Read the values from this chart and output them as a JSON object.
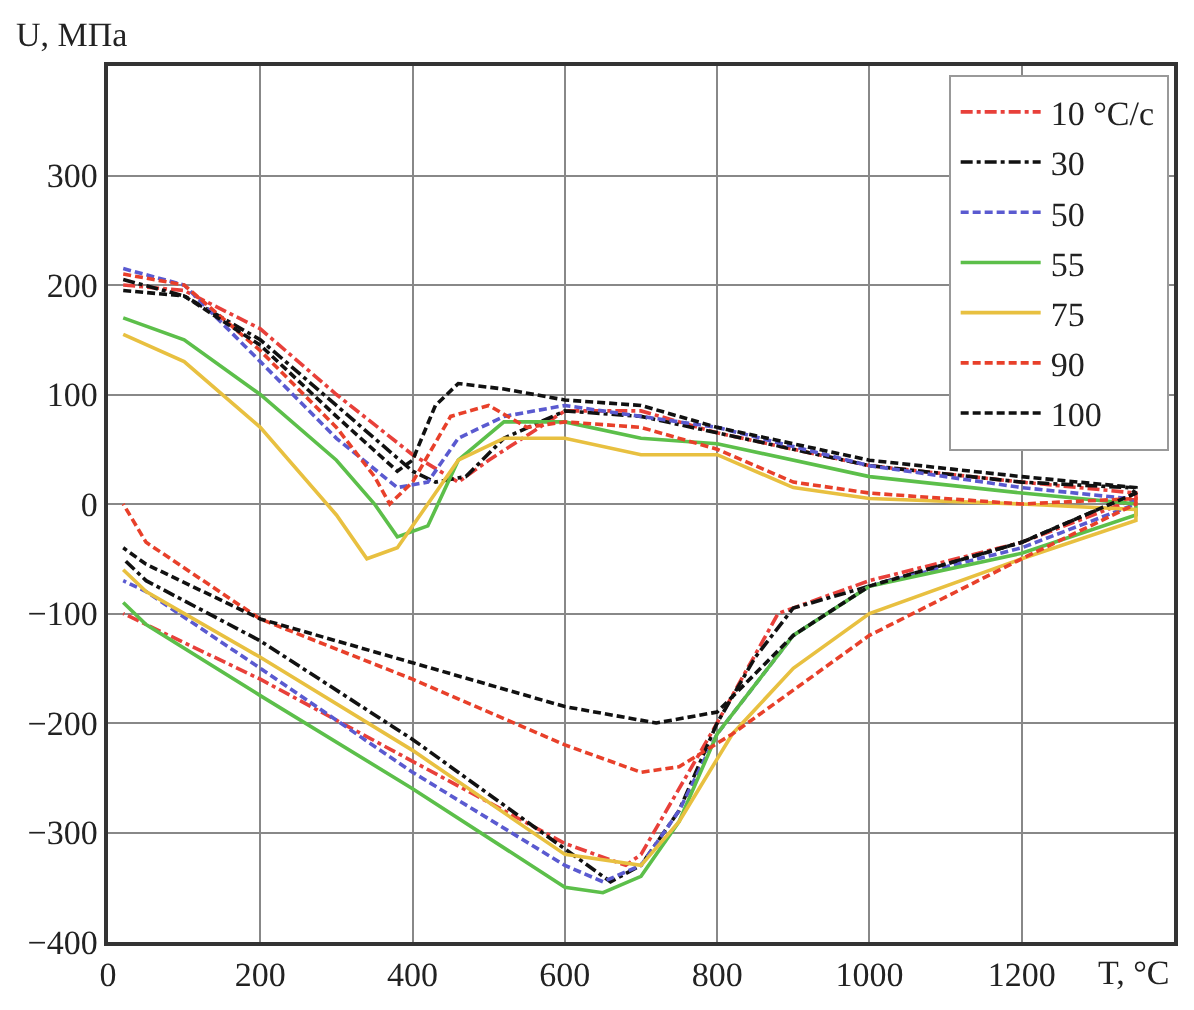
{
  "chart_data": {
    "type": "line",
    "xlabel": "T, °C",
    "ylabel": "U, МПа",
    "xlim": [
      0,
      1400
    ],
    "xticks": [
      0,
      200,
      400,
      600,
      800,
      1000,
      1200
    ],
    "ylim": [
      -400,
      400
    ],
    "yticks": [
      -400,
      -300,
      -200,
      -100,
      0,
      100,
      200,
      300
    ],
    "grid": true,
    "legend": "top right",
    "marker": "none",
    "series": [
      {
        "name": "10 °C/c",
        "color": "#e8403a",
        "line_style": "dashdot",
        "x": [
          20,
          100,
          200,
          300,
          400,
          460,
          500,
          600,
          700,
          800,
          1000,
          1200,
          1350,
          1350,
          1200,
          1000,
          880,
          800,
          700,
          680,
          600,
          400,
          200,
          50,
          20
        ],
        "values": [
          200,
          195,
          160,
          100,
          45,
          20,
          40,
          85,
          85,
          65,
          35,
          20,
          10,
          5,
          -35,
          -70,
          -100,
          -200,
          -320,
          -330,
          -310,
          -235,
          -160,
          -110,
          -100
        ]
      },
      {
        "name": "30",
        "color": "#111111",
        "line_style": "dashdot",
        "x": [
          20,
          100,
          200,
          300,
          400,
          430,
          470,
          520,
          600,
          700,
          800,
          1000,
          1200,
          1340,
          1350,
          1200,
          1000,
          900,
          850,
          800,
          750,
          700,
          660,
          600,
          400,
          200,
          50,
          20
        ],
        "values": [
          205,
          190,
          150,
          90,
          30,
          20,
          25,
          60,
          85,
          80,
          65,
          35,
          20,
          15,
          10,
          -35,
          -75,
          -95,
          -140,
          -200,
          -280,
          -330,
          -345,
          -315,
          -215,
          -125,
          -70,
          -50
        ]
      },
      {
        "name": "50",
        "color": "#5a5ad0",
        "line_style": "dashed",
        "x": [
          20,
          100,
          200,
          300,
          380,
          420,
          460,
          520,
          600,
          800,
          1000,
          1200,
          1340,
          1350,
          1200,
          1000,
          900,
          800,
          750,
          700,
          650,
          600,
          400,
          200,
          50,
          20
        ],
        "values": [
          215,
          200,
          130,
          60,
          15,
          20,
          60,
          80,
          90,
          70,
          35,
          15,
          5,
          0,
          -40,
          -75,
          -120,
          -210,
          -280,
          -330,
          -345,
          -330,
          -245,
          -150,
          -80,
          -70
        ]
      },
      {
        "name": "55",
        "color": "#5cbf4a",
        "line_style": "solid",
        "x": [
          20,
          100,
          200,
          300,
          350,
          380,
          420,
          460,
          520,
          600,
          700,
          800,
          1000,
          1200,
          1350,
          1350,
          1200,
          1000,
          900,
          800,
          750,
          700,
          650,
          600,
          400,
          200,
          50,
          20
        ],
        "values": [
          170,
          150,
          100,
          40,
          0,
          -30,
          -20,
          40,
          75,
          75,
          60,
          55,
          25,
          10,
          0,
          -10,
          -45,
          -75,
          -120,
          -210,
          -290,
          -340,
          -355,
          -350,
          -260,
          -175,
          -110,
          -90
        ]
      },
      {
        "name": "75",
        "color": "#e8c040",
        "line_style": "solid",
        "x": [
          20,
          100,
          200,
          300,
          340,
          380,
          420,
          460,
          520,
          600,
          700,
          800,
          900,
          1000,
          1200,
          1350,
          1350,
          1200,
          1000,
          900,
          820,
          750,
          700,
          600,
          400,
          200,
          50,
          20
        ],
        "values": [
          155,
          130,
          70,
          -10,
          -50,
          -40,
          0,
          40,
          60,
          60,
          45,
          45,
          15,
          5,
          0,
          -5,
          -15,
          -50,
          -100,
          -150,
          -210,
          -290,
          -330,
          -320,
          -225,
          -140,
          -80,
          -60
        ]
      },
      {
        "name": "90",
        "color": "#e8402a",
        "line_style": "dashed",
        "x": [
          20,
          100,
          200,
          300,
          350,
          370,
          400,
          450,
          500,
          550,
          600,
          700,
          800,
          900,
          1000,
          1200,
          1350,
          1350,
          1200,
          1000,
          900,
          820,
          750,
          700,
          600,
          400,
          200,
          50,
          20
        ],
        "values": [
          210,
          200,
          140,
          70,
          25,
          0,
          20,
          80,
          90,
          70,
          75,
          70,
          50,
          20,
          10,
          0,
          5,
          0,
          -50,
          -120,
          -170,
          -210,
          -240,
          -245,
          -220,
          -160,
          -105,
          -35,
          0
        ]
      },
      {
        "name": "100",
        "color": "#111111",
        "line_style": "dashed",
        "x": [
          20,
          100,
          200,
          300,
          380,
          400,
          430,
          460,
          520,
          600,
          700,
          800,
          1000,
          1200,
          1350,
          1350,
          1200,
          1000,
          900,
          800,
          720,
          600,
          400,
          200,
          50,
          20
        ],
        "values": [
          195,
          190,
          145,
          80,
          30,
          40,
          90,
          110,
          105,
          95,
          90,
          70,
          40,
          25,
          15,
          10,
          -35,
          -75,
          -120,
          -190,
          -200,
          -185,
          -145,
          -105,
          -55,
          -40
        ]
      }
    ]
  }
}
